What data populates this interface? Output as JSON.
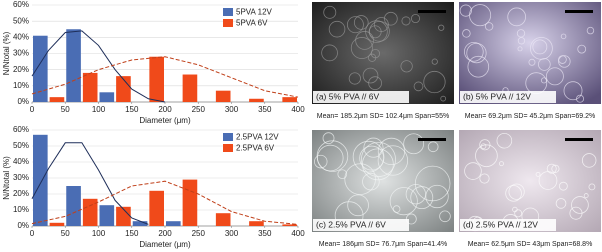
{
  "chart_data": [
    {
      "type": "bar",
      "ylabel": "N/Ntotal (%)",
      "xlabel": "Diameter (μm)",
      "x": [
        25,
        75,
        125,
        175,
        225,
        275,
        325,
        375
      ],
      "series": [
        {
          "name": "5PVA 12V",
          "color": "#4a6db4",
          "values": [
            41,
            45,
            6,
            0,
            0,
            0,
            0,
            0
          ]
        },
        {
          "name": "5PVA 6V",
          "color": "#f04a1a",
          "values": [
            3,
            18,
            16,
            28,
            17,
            7,
            2,
            3
          ]
        }
      ],
      "fits": [
        {
          "color": "#1f2f5a",
          "dashed": false,
          "x": [
            0,
            25,
            50,
            75,
            100,
            125,
            150,
            175,
            200
          ],
          "values": [
            16,
            32,
            43,
            44,
            35,
            20,
            8,
            2,
            0
          ]
        },
        {
          "color": "#c0401a",
          "dashed": true,
          "x": [
            0,
            50,
            100,
            150,
            200,
            250,
            300,
            350,
            400
          ],
          "values": [
            5,
            11,
            20,
            26,
            28,
            23,
            15,
            7,
            3
          ]
        }
      ],
      "xlim": [
        0,
        400
      ],
      "xticks": [
        0,
        50,
        100,
        150,
        200,
        250,
        300,
        350,
        400
      ],
      "ylim": [
        0,
        60
      ],
      "yticks": [
        {
          "value": 0,
          "label": "0%"
        },
        {
          "value": 10,
          "label": "10%"
        },
        {
          "value": 20,
          "label": "20%"
        },
        {
          "value": 30,
          "label": "30%"
        },
        {
          "value": 40,
          "label": "40%"
        },
        {
          "value": 50,
          "label": "50%"
        },
        {
          "value": 60,
          "label": "60%"
        }
      ],
      "legend": "upper right"
    },
    {
      "type": "bar",
      "ylabel": "N/Ntotal (%)",
      "xlabel": "Diameter (μm)",
      "x": [
        25,
        75,
        125,
        175,
        225,
        275,
        325,
        375
      ],
      "series": [
        {
          "name": "2.5PVA 12V",
          "color": "#4a6db4",
          "values": [
            57,
            25,
            13,
            3,
            3,
            0,
            0,
            0
          ]
        },
        {
          "name": "2.5PVA 6V",
          "color": "#f04a1a",
          "values": [
            2,
            17,
            12,
            22,
            29,
            8,
            3,
            1
          ]
        }
      ],
      "fits": [
        {
          "color": "#1f2f5a",
          "dashed": false,
          "x": [
            0,
            25,
            50,
            75,
            100,
            125,
            150,
            175
          ],
          "values": [
            17,
            36,
            52,
            52,
            35,
            16,
            5,
            1
          ]
        },
        {
          "color": "#c0401a",
          "dashed": true,
          "x": [
            0,
            50,
            100,
            150,
            200,
            250,
            300,
            350,
            400
          ],
          "values": [
            1.5,
            6,
            15,
            25,
            28,
            20,
            9,
            3,
            1
          ]
        }
      ],
      "xlim": [
        0,
        400
      ],
      "xticks": [
        0,
        50,
        100,
        150,
        200,
        250,
        300,
        350,
        400
      ],
      "ylim": [
        0,
        60
      ],
      "yticks": [
        {
          "value": 0,
          "label": "0%"
        },
        {
          "value": 10,
          "label": "10%"
        },
        {
          "value": 20,
          "label": "20%"
        },
        {
          "value": 30,
          "label": "30%"
        },
        {
          "value": 40,
          "label": "40%"
        },
        {
          "value": 50,
          "label": "50%"
        },
        {
          "value": 60,
          "label": "60%"
        }
      ],
      "legend": "upper right"
    }
  ],
  "panels": [
    {
      "label": "(a) 5% PVA // 6V",
      "stats": "Mean= 185.2μm SD= 102.4μm Span=55%"
    },
    {
      "label": "(b) 5% PVA // 12V",
      "stats": "Mean= 69.2μm SD= 45.2μm Span=69.2%"
    },
    {
      "label": "(c) 2.5% PVA // 6V",
      "stats": "Mean= 186μm SD= 76.7μm Span=41.4%"
    },
    {
      "label": "(d) 2.5% PVA // 12V",
      "stats": "Mean= 62.5μm SD= 43μm Span=68.8%"
    }
  ]
}
